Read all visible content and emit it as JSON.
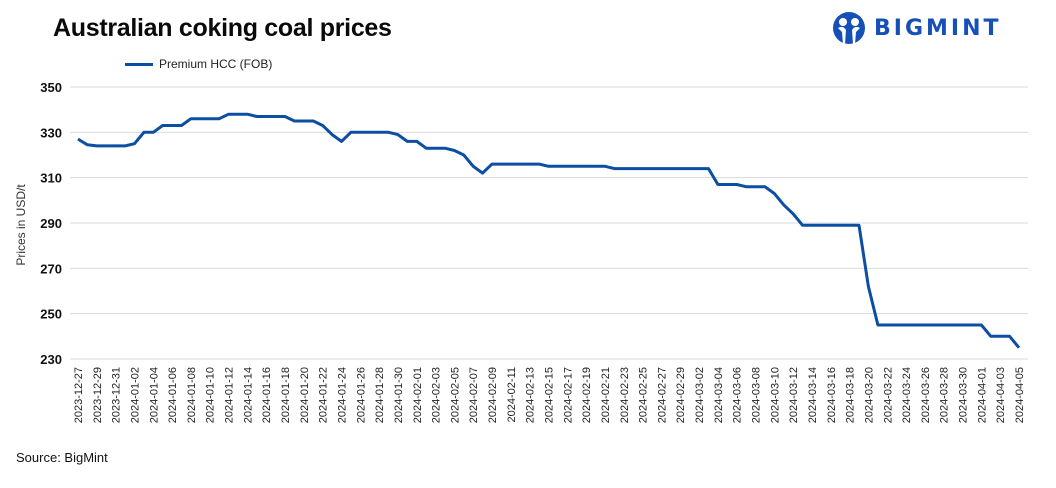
{
  "header": {
    "title": "Australian coking coal prices",
    "brand": "BIGMINT"
  },
  "legend": {
    "series_label": "Premium HCC (FOB)",
    "series_color": "#0b4ea2"
  },
  "axes": {
    "ylabel": "Prices in USD/t"
  },
  "footer": {
    "source": "Source: BigMint"
  },
  "chart_data": {
    "type": "line",
    "title": "Australian coking coal prices",
    "xlabel": "",
    "ylabel": "Prices in USD/t",
    "ylim": [
      230,
      350
    ],
    "yticks": [
      230,
      250,
      270,
      290,
      310,
      330,
      350
    ],
    "grid": "horizontal",
    "legend_position": "top-left",
    "x_ticks": [
      "2023-12-27",
      "2023-12-29",
      "2023-12-31",
      "2024-01-02",
      "2024-01-04",
      "2024-01-06",
      "2024-01-08",
      "2024-01-10",
      "2024-01-12",
      "2024-01-14",
      "2024-01-16",
      "2024-01-18",
      "2024-01-20",
      "2024-01-22",
      "2024-01-24",
      "2024-01-26",
      "2024-01-28",
      "2024-01-30",
      "2024-02-01",
      "2024-02-03",
      "2024-02-05",
      "2024-02-07",
      "2024-02-09",
      "2024-02-11",
      "2024-02-13",
      "2024-02-15",
      "2024-02-17",
      "2024-02-19",
      "2024-02-21",
      "2024-02-23",
      "2024-02-25",
      "2024-02-27",
      "2024-02-29",
      "2024-03-02",
      "2024-03-04",
      "2024-03-06",
      "2024-03-08",
      "2024-03-10",
      "2024-03-12",
      "2024-03-14",
      "2024-03-16",
      "2024-03-18",
      "2024-03-20",
      "2024-03-22",
      "2024-03-24",
      "2024-03-26",
      "2024-03-28",
      "2024-03-30",
      "2024-04-01",
      "2024-04-03",
      "2024-04-05"
    ],
    "series": [
      {
        "name": "Premium HCC (FOB)",
        "color": "#0b4ea2",
        "points": [
          [
            "2023-12-27",
            327
          ],
          [
            "2023-12-28",
            324.5
          ],
          [
            "2023-12-29",
            324
          ],
          [
            "2024-01-01",
            324
          ],
          [
            "2024-01-02",
            325
          ],
          [
            "2024-01-03",
            330
          ],
          [
            "2024-01-04",
            330
          ],
          [
            "2024-01-05",
            333
          ],
          [
            "2024-01-07",
            333
          ],
          [
            "2024-01-08",
            336
          ],
          [
            "2024-01-11",
            336
          ],
          [
            "2024-01-12",
            338
          ],
          [
            "2024-01-14",
            338
          ],
          [
            "2024-01-15",
            337
          ],
          [
            "2024-01-18",
            337
          ],
          [
            "2024-01-19",
            335
          ],
          [
            "2024-01-21",
            335
          ],
          [
            "2024-01-22",
            333
          ],
          [
            "2024-01-23",
            329
          ],
          [
            "2024-01-24",
            326
          ],
          [
            "2024-01-25",
            330
          ],
          [
            "2024-01-29",
            330
          ],
          [
            "2024-01-30",
            329
          ],
          [
            "2024-01-31",
            326
          ],
          [
            "2024-02-01",
            326
          ],
          [
            "2024-02-02",
            323
          ],
          [
            "2024-02-04",
            323
          ],
          [
            "2024-02-05",
            322
          ],
          [
            "2024-02-06",
            320
          ],
          [
            "2024-02-07",
            315
          ],
          [
            "2024-02-08",
            312
          ],
          [
            "2024-02-09",
            316
          ],
          [
            "2024-02-14",
            316
          ],
          [
            "2024-02-15",
            315
          ],
          [
            "2024-02-21",
            315
          ],
          [
            "2024-02-22",
            314
          ],
          [
            "2024-03-03",
            314
          ],
          [
            "2024-03-04",
            307
          ],
          [
            "2024-03-06",
            307
          ],
          [
            "2024-03-07",
            306
          ],
          [
            "2024-03-09",
            306
          ],
          [
            "2024-03-10",
            303
          ],
          [
            "2024-03-11",
            298
          ],
          [
            "2024-03-12",
            294
          ],
          [
            "2024-03-13",
            289
          ],
          [
            "2024-03-19",
            289
          ],
          [
            "2024-03-20",
            262
          ],
          [
            "2024-03-21",
            245
          ],
          [
            "2024-04-01",
            245
          ],
          [
            "2024-04-02",
            240
          ],
          [
            "2024-04-04",
            240
          ],
          [
            "2024-04-05",
            235
          ]
        ]
      }
    ]
  }
}
